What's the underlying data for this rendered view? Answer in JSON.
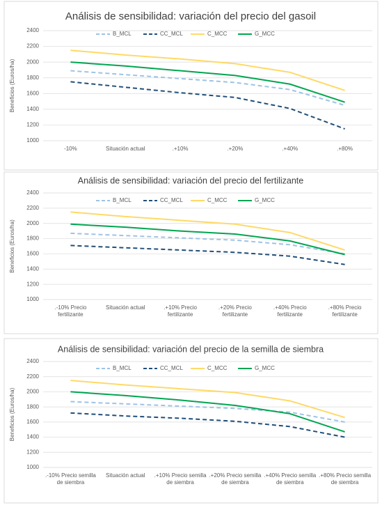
{
  "chart_data": [
    {
      "type": "line",
      "title": "Análisis de sensibilidad: variación del precio del gasoil",
      "y_label": "Beneficios (Euros/ha)",
      "categories": [
        [
          "-10%"
        ],
        [
          "Situación actual"
        ],
        [
          ".+10%"
        ],
        [
          ".+20%"
        ],
        [
          ".+40%"
        ],
        [
          ".+80%"
        ]
      ],
      "ylim": [
        1000,
        2400
      ],
      "yticks": [
        1000,
        1200,
        1400,
        1600,
        1800,
        2000,
        2200,
        2400
      ],
      "grid": true,
      "legend": "top",
      "series": [
        {
          "name": "B_MCL",
          "color": "#9dc3e6",
          "dashed": true,
          "values": [
            1890,
            1840,
            1790,
            1740,
            1650,
            1450
          ]
        },
        {
          "name": "CC_MCL",
          "color": "#1f4e79",
          "dashed": true,
          "values": [
            1750,
            1680,
            1610,
            1550,
            1410,
            1150
          ]
        },
        {
          "name": "C_MCC",
          "color": "#ffd966",
          "dashed": false,
          "values": [
            2150,
            2090,
            2040,
            1980,
            1870,
            1640
          ]
        },
        {
          "name": "G_MCC",
          "color": "#00a550",
          "dashed": false,
          "values": [
            2000,
            1950,
            1890,
            1830,
            1720,
            1490
          ]
        }
      ]
    },
    {
      "type": "line",
      "title": "Análisis de sensibilidad: variación del precio del fertilizante",
      "y_label": "Beneficios (Euros/ha)",
      "categories": [
        [
          ".-10% Precio",
          "fertilizante"
        ],
        [
          "Situación actual"
        ],
        [
          ".+10% Precio",
          "fertilizante"
        ],
        [
          ".+20% Precio",
          "fertilizante"
        ],
        [
          ".+40% Precio",
          "fertilizante"
        ],
        [
          ".+80% Precio",
          "fertilizante"
        ]
      ],
      "ylim": [
        1000,
        2400
      ],
      "yticks": [
        1000,
        1200,
        1400,
        1600,
        1800,
        2000,
        2200,
        2400
      ],
      "grid": true,
      "legend": "top",
      "series": [
        {
          "name": "B_MCL",
          "color": "#9dc3e6",
          "dashed": true,
          "values": [
            1870,
            1840,
            1810,
            1780,
            1720,
            1600
          ]
        },
        {
          "name": "CC_MCL",
          "color": "#1f4e79",
          "dashed": true,
          "values": [
            1710,
            1680,
            1650,
            1620,
            1570,
            1460
          ]
        },
        {
          "name": "C_MCC",
          "color": "#ffd966",
          "dashed": false,
          "values": [
            2150,
            2090,
            2040,
            1990,
            1880,
            1650
          ]
        },
        {
          "name": "G_MCC",
          "color": "#00a550",
          "dashed": false,
          "values": [
            1990,
            1950,
            1900,
            1860,
            1770,
            1590
          ]
        }
      ]
    },
    {
      "type": "line",
      "title": "Análisis de sensibilidad: variación del precio de la semilla de siembra",
      "y_label": "Beneficios (Euros/ha)",
      "categories": [
        [
          ".-10% Precio semilla",
          "de siembra"
        ],
        [
          "Situación actual"
        ],
        [
          ".+10% Precio semilla",
          "de siembra"
        ],
        [
          ".+20% Precio semilla",
          "de siembra"
        ],
        [
          ".+40% Precio semilla",
          "de siembra"
        ],
        [
          ".+80% Precio semilla",
          "de siembra"
        ]
      ],
      "ylim": [
        1000,
        2400
      ],
      "yticks": [
        1000,
        1200,
        1400,
        1600,
        1800,
        2000,
        2200,
        2400
      ],
      "grid": true,
      "legend": "top",
      "series": [
        {
          "name": "B_MCL",
          "color": "#9dc3e6",
          "dashed": true,
          "values": [
            1870,
            1840,
            1810,
            1780,
            1730,
            1600
          ]
        },
        {
          "name": "CC_MCL",
          "color": "#1f4e79",
          "dashed": true,
          "values": [
            1720,
            1680,
            1650,
            1610,
            1540,
            1400
          ]
        },
        {
          "name": "C_MCC",
          "color": "#ffd966",
          "dashed": false,
          "values": [
            2150,
            2090,
            2040,
            1990,
            1880,
            1660
          ]
        },
        {
          "name": "G_MCC",
          "color": "#00a550",
          "dashed": false,
          "values": [
            2000,
            1950,
            1890,
            1820,
            1710,
            1470
          ]
        }
      ]
    }
  ]
}
